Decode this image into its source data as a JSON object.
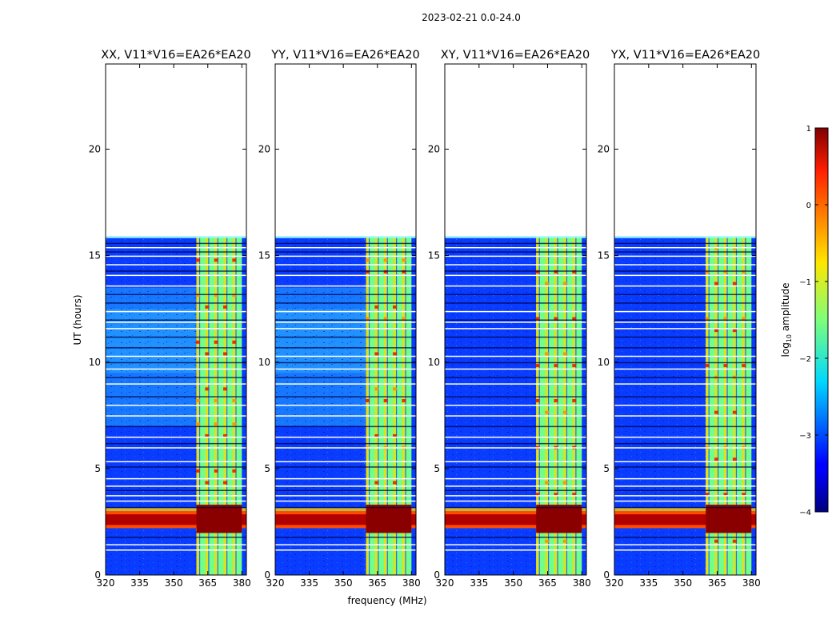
{
  "suptitle": "2023-02-21 0.0-24.0",
  "chart_data": {
    "type": "heatmap",
    "title": "2023-02-21 0.0-24.0",
    "xlabel": "frequency (MHz)",
    "ylabel": "UT (hours)",
    "xlim": [
      320,
      382
    ],
    "ylim": [
      0,
      24
    ],
    "x_ticks": [
      320,
      335,
      350,
      365,
      380
    ],
    "y_ticks": [
      0,
      5,
      10,
      15,
      20
    ],
    "data_end_hour": 15.9,
    "bright_band_freq_range": [
      360,
      380
    ],
    "bright_band_stripes_mhz": [
      360.5,
      364.5,
      368.5,
      372.5,
      376.5
    ],
    "strong_rfi_hours": [
      2.2,
      3.0
    ],
    "panels": [
      {
        "title": "XX, V11*V16=EA26*EA20",
        "pol": "XX"
      },
      {
        "title": "YY, V11*V16=EA26*EA20",
        "pol": "YY"
      },
      {
        "title": "XY, V11*V16=EA26*EA20",
        "pol": "XY"
      },
      {
        "title": "YX, V11*V16=EA26*EA20",
        "pol": "YX"
      }
    ],
    "colorbar": {
      "label": "log10 amplitude",
      "label_main": "log",
      "label_sub": "10",
      "label_rest": " amplitude",
      "range": [
        -4,
        1
      ],
      "ticks": [
        1,
        0,
        -1,
        -2,
        -3,
        -4
      ],
      "tick_labels": [
        "1",
        "0",
        "−1",
        "−2",
        "−3",
        "−4"
      ],
      "colormap": "jet"
    }
  }
}
